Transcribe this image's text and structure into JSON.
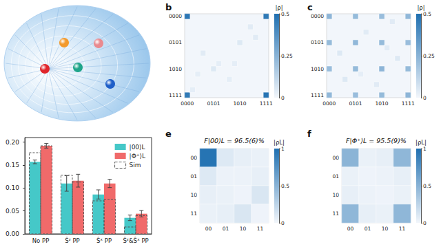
{
  "chart_data": [
    {
      "type": "bar",
      "categories": [
        "No PP",
        "Ŝᶻ PP",
        "Ŝˣ PP",
        "Ŝᶻ&Ŝˣ PP"
      ],
      "series": [
        {
          "name": "|00⟩L",
          "color": "#45c8c8",
          "values": [
            0.157,
            0.11,
            0.086,
            0.035
          ],
          "errors": [
            0.004,
            0.017,
            0.01,
            0.006
          ],
          "sim": [
            0.177,
            0.128,
            0.072,
            0.015
          ]
        },
        {
          "name": "|Φ⁺⟩L",
          "color": "#f06a6a",
          "values": [
            0.192,
            0.116,
            0.11,
            0.044
          ],
          "errors": [
            0.005,
            0.014,
            0.009,
            0.007
          ],
          "sim": [
            0.192,
            0.113,
            0.075,
            0.04
          ]
        }
      ],
      "reference": {
        "name": "Sim",
        "line_style": "dashed"
      },
      "ylim": [
        0,
        0.21
      ],
      "yticks": [
        {
          "value": 0,
          "label": "0.00"
        },
        {
          "value": 0.05,
          "label": "0.05"
        },
        {
          "value": 0.1,
          "label": "0.10"
        },
        {
          "value": 0.15,
          "label": "0.15"
        },
        {
          "value": 0.2,
          "label": "0.20"
        }
      ],
      "grid": false,
      "legend": "upper right"
    },
    {
      "type": "heatmap",
      "panel_label": "b",
      "categories": [
        "0000",
        null,
        null,
        null,
        null,
        "0101",
        null,
        null,
        null,
        null,
        "1010",
        null,
        null,
        null,
        null,
        "1111"
      ],
      "zlim": [
        0,
        0.5
      ],
      "zticks": [
        0,
        0.25,
        0.5
      ],
      "z_label": "|ρ|",
      "cells": [
        [
          0,
          0,
          0.47
        ],
        [
          15,
          0,
          0.46
        ],
        [
          0,
          15,
          0.46
        ],
        [
          15,
          15,
          0.48
        ],
        [
          5,
          10,
          0.05
        ],
        [
          10,
          5,
          0.05
        ],
        [
          3,
          7,
          0.04
        ],
        [
          8,
          12,
          0.03
        ],
        [
          12,
          2,
          0.04
        ],
        [
          6,
          9,
          0.03
        ],
        [
          1,
          14,
          0.03
        ],
        [
          13,
          4,
          0.04
        ],
        [
          9,
          9,
          0.03
        ],
        [
          2,
          11,
          0.03
        ]
      ]
    },
    {
      "type": "heatmap",
      "panel_label": "c",
      "categories": [
        "0000",
        null,
        null,
        null,
        null,
        "0101",
        null,
        null,
        null,
        null,
        "1010",
        null,
        null,
        null,
        null,
        "1111"
      ],
      "zlim": [
        0,
        0.5
      ],
      "zticks": [
        0,
        0.25,
        0.5
      ],
      "z_label": "|ρ|",
      "cells": [
        [
          0,
          0,
          0.24
        ],
        [
          5,
          0,
          0.22
        ],
        [
          10,
          0,
          0.21
        ],
        [
          15,
          0,
          0.23
        ],
        [
          0,
          5,
          0.22
        ],
        [
          5,
          5,
          0.23
        ],
        [
          10,
          5,
          0.22
        ],
        [
          15,
          5,
          0.21
        ],
        [
          0,
          10,
          0.21
        ],
        [
          5,
          10,
          0.22
        ],
        [
          10,
          10,
          0.24
        ],
        [
          15,
          10,
          0.22
        ],
        [
          0,
          15,
          0.23
        ],
        [
          5,
          15,
          0.21
        ],
        [
          10,
          15,
          0.22
        ],
        [
          15,
          15,
          0.24
        ],
        [
          2,
          7,
          0.05
        ],
        [
          7,
          3,
          0.04
        ],
        [
          12,
          1,
          0.04
        ],
        [
          3,
          12,
          0.05
        ],
        [
          9,
          13,
          0.04
        ],
        [
          13,
          8,
          0.05
        ],
        [
          6,
          11,
          0.03
        ],
        [
          11,
          6,
          0.04
        ]
      ]
    },
    {
      "type": "heatmap",
      "panel_label": "e",
      "annotation": "F|00⟩L = 96.5(6)%",
      "categories": [
        "00",
        "01",
        "10",
        "11"
      ],
      "zlim": [
        0,
        1
      ],
      "zticks": [
        0,
        0.5,
        1
      ],
      "z_label": "|ρL|",
      "cells": [
        [
          0,
          0,
          0.965
        ],
        [
          1,
          0,
          0.1
        ],
        [
          2,
          0,
          0.05
        ],
        [
          3,
          0,
          0.04
        ],
        [
          0,
          1,
          0.1
        ],
        [
          1,
          1,
          0.03
        ],
        [
          2,
          1,
          0.03
        ],
        [
          3,
          1,
          0.05
        ],
        [
          0,
          2,
          0.05
        ],
        [
          1,
          2,
          0.04
        ],
        [
          2,
          2,
          0.02
        ],
        [
          3,
          2,
          0.12
        ],
        [
          0,
          3,
          0.04
        ],
        [
          1,
          3,
          0.05
        ],
        [
          2,
          3,
          0.12
        ],
        [
          3,
          3,
          0.02
        ]
      ]
    },
    {
      "type": "heatmap",
      "panel_label": "f",
      "annotation": "F|Φ⁺⟩L = 95.5(9)%",
      "categories": [
        "00",
        "01",
        "10",
        "11"
      ],
      "zlim": [
        0,
        1
      ],
      "zticks": [
        0,
        0.5,
        1
      ],
      "z_label": "|ρL|",
      "cells": [
        [
          0,
          0,
          0.49
        ],
        [
          1,
          0,
          0.04
        ],
        [
          2,
          0,
          0.05
        ],
        [
          3,
          0,
          0.47
        ],
        [
          0,
          1,
          0.04
        ],
        [
          1,
          1,
          0.02
        ],
        [
          2,
          1,
          0.03
        ],
        [
          3,
          1,
          0.05
        ],
        [
          0,
          2,
          0.05
        ],
        [
          1,
          2,
          0.03
        ],
        [
          2,
          2,
          0.02
        ],
        [
          3,
          2,
          0.04
        ],
        [
          0,
          3,
          0.47
        ],
        [
          1,
          3,
          0.05
        ],
        [
          2,
          3,
          0.04
        ],
        [
          3,
          3,
          0.47
        ]
      ]
    }
  ]
}
